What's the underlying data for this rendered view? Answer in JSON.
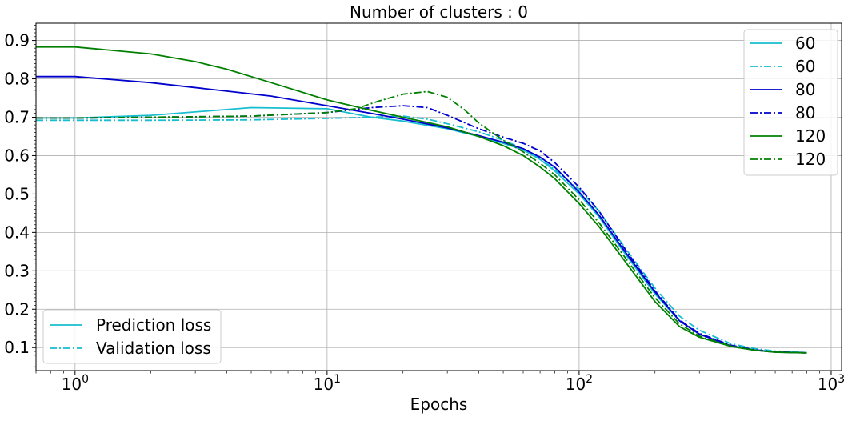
{
  "chart_data": {
    "type": "line",
    "title": "Number of clusters : 0",
    "xlabel": "Epochs",
    "ylabel": "",
    "xscale": "log",
    "xlim": [
      0.7,
      1100
    ],
    "ylim": [
      0.04,
      0.945
    ],
    "grid": true,
    "x_major_ticks": [
      {
        "value": 1,
        "base": "10",
        "exp": "0"
      },
      {
        "value": 10,
        "base": "10",
        "exp": "1"
      },
      {
        "value": 100,
        "base": "10",
        "exp": "2"
      },
      {
        "value": 1000,
        "base": "10",
        "exp": "3"
      }
    ],
    "y_ticks": [
      {
        "value": 0.1,
        "label": "0.1"
      },
      {
        "value": 0.2,
        "label": "0.2"
      },
      {
        "value": 0.3,
        "label": "0.3"
      },
      {
        "value": 0.4,
        "label": "0.4"
      },
      {
        "value": 0.5,
        "label": "0.5"
      },
      {
        "value": 0.6,
        "label": "0.6"
      },
      {
        "value": 0.7,
        "label": "0.7"
      },
      {
        "value": 0.8,
        "label": "0.8"
      },
      {
        "value": 0.9,
        "label": "0.9"
      }
    ],
    "series": [
      {
        "name": "60",
        "color": "#17becf",
        "style": "solid",
        "x": [
          0.7,
          1,
          2,
          5,
          10,
          15,
          20,
          30,
          40,
          50,
          60,
          70,
          80,
          100,
          120,
          150,
          200,
          250,
          300,
          400,
          500,
          600,
          800
        ],
        "y": [
          0.698,
          0.698,
          0.705,
          0.725,
          0.722,
          0.7,
          0.69,
          0.67,
          0.65,
          0.632,
          0.615,
          0.59,
          0.56,
          0.5,
          0.44,
          0.35,
          0.24,
          0.17,
          0.135,
          0.105,
          0.093,
          0.089,
          0.087
        ]
      },
      {
        "name": "60",
        "color": "#17becf",
        "style": "dashdot",
        "x": [
          0.7,
          1,
          2,
          5,
          10,
          15,
          20,
          25,
          30,
          40,
          50,
          60,
          70,
          80,
          100,
          120,
          150,
          200,
          250,
          300,
          400,
          500,
          600,
          800
        ],
        "y": [
          0.692,
          0.692,
          0.692,
          0.693,
          0.697,
          0.7,
          0.703,
          0.695,
          0.683,
          0.662,
          0.64,
          0.618,
          0.592,
          0.564,
          0.512,
          0.455,
          0.365,
          0.255,
          0.182,
          0.145,
          0.11,
          0.097,
          0.091,
          0.087
        ]
      },
      {
        "name": "80",
        "color": "#0000cd",
        "style": "solid",
        "x": [
          0.7,
          1,
          2,
          4,
          6,
          10,
          15,
          20,
          30,
          40,
          50,
          60,
          70,
          80,
          100,
          120,
          150,
          200,
          250,
          300,
          400,
          500,
          600,
          800
        ],
        "y": [
          0.806,
          0.806,
          0.79,
          0.768,
          0.755,
          0.73,
          0.71,
          0.695,
          0.672,
          0.652,
          0.635,
          0.618,
          0.596,
          0.57,
          0.505,
          0.445,
          0.355,
          0.245,
          0.17,
          0.135,
          0.104,
          0.093,
          0.088,
          0.086
        ]
      },
      {
        "name": "80",
        "color": "#0000cd",
        "style": "dashdot",
        "x": [
          0.7,
          1,
          2,
          5,
          10,
          15,
          20,
          25,
          30,
          40,
          50,
          60,
          70,
          80,
          100,
          120,
          150,
          200,
          250,
          300,
          400,
          500,
          600,
          800
        ],
        "y": [
          0.698,
          0.698,
          0.7,
          0.703,
          0.712,
          0.725,
          0.73,
          0.725,
          0.705,
          0.67,
          0.648,
          0.632,
          0.612,
          0.582,
          0.518,
          0.455,
          0.362,
          0.248,
          0.172,
          0.137,
          0.106,
          0.094,
          0.089,
          0.086
        ]
      },
      {
        "name": "120",
        "color": "#008000",
        "style": "solid",
        "x": [
          0.7,
          1,
          2,
          3,
          4,
          6,
          10,
          15,
          20,
          30,
          40,
          50,
          60,
          70,
          80,
          100,
          120,
          150,
          200,
          250,
          300,
          400,
          500,
          600,
          800
        ],
        "y": [
          0.883,
          0.883,
          0.865,
          0.845,
          0.825,
          0.79,
          0.745,
          0.718,
          0.7,
          0.675,
          0.65,
          0.626,
          0.6,
          0.57,
          0.54,
          0.475,
          0.415,
          0.33,
          0.22,
          0.155,
          0.127,
          0.103,
          0.093,
          0.088,
          0.086
        ]
      },
      {
        "name": "120",
        "color": "#008000",
        "style": "dashdot",
        "x": [
          0.7,
          1,
          2,
          5,
          10,
          13,
          16,
          20,
          25,
          30,
          35,
          40,
          50,
          60,
          70,
          80,
          100,
          120,
          150,
          200,
          250,
          300,
          400,
          500,
          600,
          800
        ],
        "y": [
          0.698,
          0.698,
          0.7,
          0.703,
          0.712,
          0.722,
          0.742,
          0.76,
          0.767,
          0.752,
          0.72,
          0.685,
          0.64,
          0.61,
          0.58,
          0.55,
          0.485,
          0.425,
          0.34,
          0.23,
          0.162,
          0.13,
          0.104,
          0.093,
          0.088,
          0.086
        ]
      }
    ],
    "legend_series": {
      "location": "upper right",
      "entries": [
        "60",
        "60",
        "80",
        "80",
        "120",
        "120"
      ]
    },
    "legend_style": {
      "location": "lower left",
      "color": "#17becf",
      "entries": [
        {
          "label": "Prediction loss",
          "style": "solid"
        },
        {
          "label": "Validation loss",
          "style": "dashdot"
        }
      ]
    }
  }
}
